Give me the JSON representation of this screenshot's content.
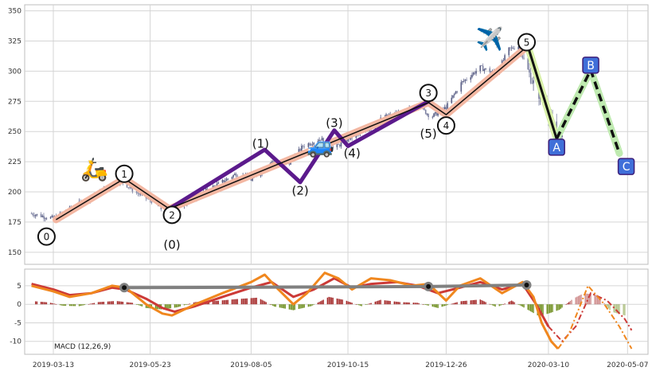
{
  "chart_data": [
    {
      "type": "candlestick",
      "title": "",
      "xlabel": "",
      "ylabel": "",
      "ylim": [
        140,
        355
      ],
      "yticks": [
        150,
        175,
        200,
        225,
        250,
        275,
        300,
        325,
        350
      ],
      "grid": true,
      "price_path": [
        [
          "2019-02-25",
          182
        ],
        [
          "2019-03-13",
          178
        ],
        [
          "2019-03-25",
          186
        ],
        [
          "2019-04-10",
          196
        ],
        [
          "2019-04-25",
          205
        ],
        [
          "2019-05-01",
          210
        ],
        [
          "2019-05-12",
          200
        ],
        [
          "2019-05-25",
          192
        ],
        [
          "2019-06-03",
          183
        ],
        [
          "2019-06-12",
          188
        ],
        [
          "2019-06-25",
          196
        ],
        [
          "2019-07-10",
          205
        ],
        [
          "2019-07-25",
          215
        ],
        [
          "2019-08-05",
          210
        ],
        [
          "2019-08-20",
          225
        ],
        [
          "2019-09-01",
          222
        ],
        [
          "2019-09-12",
          238
        ],
        [
          "2019-09-25",
          244
        ],
        [
          "2019-10-05",
          236
        ],
        [
          "2019-10-15",
          244
        ],
        [
          "2019-10-28",
          250
        ],
        [
          "2019-11-10",
          262
        ],
        [
          "2019-11-25",
          266
        ],
        [
          "2019-12-05",
          272
        ],
        [
          "2019-12-15",
          262
        ],
        [
          "2019-12-26",
          270
        ],
        [
          "2020-01-06",
          290
        ],
        [
          "2020-01-20",
          303
        ],
        [
          "2020-02-01",
          298
        ],
        [
          "2020-02-10",
          318
        ],
        [
          "2020-02-17",
          321
        ],
        [
          "2020-02-24",
          300
        ],
        [
          "2020-03-01",
          285
        ],
        [
          "2020-03-08",
          272
        ],
        [
          "2020-03-16",
          245
        ],
        [
          "2020-03-20",
          242
        ]
      ],
      "impulse_main": [
        [
          "2019-03-15",
          177
        ],
        [
          "2019-05-04",
          211
        ],
        [
          "2019-06-06",
          186
        ],
        [
          "2019-12-13",
          274
        ],
        [
          "2019-12-26",
          264
        ],
        [
          "2020-02-23",
          320
        ]
      ],
      "subwaves": [
        [
          "2019-06-06",
          186
        ],
        [
          "2019-08-15",
          235
        ],
        [
          "2019-09-10",
          208
        ],
        [
          "2019-10-05",
          251
        ],
        [
          "2019-10-15",
          238
        ],
        [
          "2019-12-13",
          275
        ]
      ],
      "correction": [
        [
          "2020-02-23",
          324
        ],
        [
          "2020-03-16",
          244
        ],
        [
          "2020-04-10",
          301
        ],
        [
          "2020-05-01",
          232
        ]
      ],
      "labels": [
        {
          "text": "0",
          "x": "2019-03-08",
          "y": 163,
          "circled": true,
          "wave": "main"
        },
        {
          "text": "1",
          "x": "2019-05-04",
          "y": 215,
          "circled": true,
          "wave": "main"
        },
        {
          "text": "2",
          "x": "2019-06-08",
          "y": 181,
          "circled": true,
          "wave": "main"
        },
        {
          "text": "(0)",
          "x": "2019-06-08",
          "y": 156,
          "circled": false,
          "wave": "sub"
        },
        {
          "text": "(1)",
          "x": "2019-08-12",
          "y": 240,
          "circled": false,
          "wave": "sub"
        },
        {
          "text": "(2)",
          "x": "2019-09-10",
          "y": 201,
          "circled": false,
          "wave": "sub"
        },
        {
          "text": "(3)",
          "x": "2019-10-05",
          "y": 257,
          "circled": false,
          "wave": "sub"
        },
        {
          "text": "(4)",
          "x": "2019-10-18",
          "y": 232,
          "circled": false,
          "wave": "sub"
        },
        {
          "text": "3",
          "x": "2019-12-13",
          "y": 282,
          "circled": true,
          "wave": "main"
        },
        {
          "text": "(5)",
          "x": "2019-12-13",
          "y": 248,
          "circled": false,
          "wave": "sub"
        },
        {
          "text": "4",
          "x": "2019-12-26",
          "y": 255,
          "circled": true,
          "wave": "main"
        },
        {
          "text": "5",
          "x": "2020-02-23",
          "y": 324,
          "circled": true,
          "wave": "main"
        },
        {
          "text": "A",
          "x": "2020-03-16",
          "y": 237,
          "circled": false,
          "wave": "corr"
        },
        {
          "text": "B",
          "x": "2020-04-10",
          "y": 305,
          "circled": false,
          "wave": "corr"
        },
        {
          "text": "C",
          "x": "2020-05-06",
          "y": 221,
          "circled": false,
          "wave": "corr"
        }
      ],
      "emojis": [
        {
          "name": "scooter-icon",
          "glyph": "🛵",
          "x": "2019-04-12",
          "y": 219
        },
        {
          "name": "car-icon",
          "glyph": "🚙",
          "x": "2019-09-25",
          "y": 239
        },
        {
          "name": "airplane-icon",
          "glyph": "✈️",
          "x": "2020-01-27",
          "y": 327
        }
      ]
    },
    {
      "type": "bar+line",
      "title": "MACD (12,26,9)",
      "ylim": [
        -13.5,
        9.5
      ],
      "yticks": [
        5,
        0,
        -5,
        -10
      ],
      "grid": true,
      "macd_line": [
        [
          "2019-02-25",
          5
        ],
        [
          "2019-03-13",
          3.5
        ],
        [
          "2019-03-25",
          2
        ],
        [
          "2019-04-10",
          3
        ],
        [
          "2019-04-25",
          5
        ],
        [
          "2019-05-05",
          4.5
        ],
        [
          "2019-05-20",
          0
        ],
        [
          "2019-06-01",
          -2.5
        ],
        [
          "2019-06-08",
          -3
        ],
        [
          "2019-06-25",
          0
        ],
        [
          "2019-07-15",
          3
        ],
        [
          "2019-08-05",
          6
        ],
        [
          "2019-08-15",
          8
        ],
        [
          "2019-08-25",
          4
        ],
        [
          "2019-09-05",
          0
        ],
        [
          "2019-09-15",
          3
        ],
        [
          "2019-09-28",
          8.5
        ],
        [
          "2019-10-08",
          7
        ],
        [
          "2019-10-18",
          4
        ],
        [
          "2019-11-01",
          7
        ],
        [
          "2019-11-15",
          6.5
        ],
        [
          "2019-12-01",
          5
        ],
        [
          "2019-12-13",
          5.5
        ],
        [
          "2019-12-26",
          1
        ],
        [
          "2020-01-05",
          5
        ],
        [
          "2020-01-20",
          7
        ],
        [
          "2020-02-05",
          3
        ],
        [
          "2020-02-20",
          6
        ],
        [
          "2020-02-28",
          2
        ],
        [
          "2020-03-05",
          -5
        ],
        [
          "2020-03-12",
          -10
        ],
        [
          "2020-03-17",
          -12
        ],
        [
          "2020-03-25",
          -8
        ],
        [
          "2020-04-08",
          5
        ],
        [
          "2020-04-20",
          0
        ],
        [
          "2020-05-01",
          -6
        ],
        [
          "2020-05-10",
          -12
        ]
      ],
      "signal_line": [
        [
          "2019-02-25",
          5.5
        ],
        [
          "2019-03-13",
          4
        ],
        [
          "2019-03-25",
          2.5
        ],
        [
          "2019-04-10",
          3
        ],
        [
          "2019-04-25",
          4.5
        ],
        [
          "2019-05-05",
          4
        ],
        [
          "2019-05-20",
          1.5
        ],
        [
          "2019-06-01",
          -1
        ],
        [
          "2019-06-10",
          -2
        ],
        [
          "2019-06-25",
          -0.5
        ],
        [
          "2019-07-15",
          2
        ],
        [
          "2019-08-05",
          4.5
        ],
        [
          "2019-08-20",
          6
        ],
        [
          "2019-09-05",
          2
        ],
        [
          "2019-09-20",
          4
        ],
        [
          "2019-10-05",
          7
        ],
        [
          "2019-10-18",
          4.5
        ],
        [
          "2019-11-01",
          5.5
        ],
        [
          "2019-11-20",
          6
        ],
        [
          "2019-12-05",
          5
        ],
        [
          "2019-12-20",
          3
        ],
        [
          "2020-01-05",
          4.5
        ],
        [
          "2020-01-20",
          6
        ],
        [
          "2020-02-05",
          4
        ],
        [
          "2020-02-20",
          5.5
        ],
        [
          "2020-03-01",
          0
        ],
        [
          "2020-03-10",
          -6
        ],
        [
          "2020-03-20",
          -10
        ],
        [
          "2020-03-30",
          -6
        ],
        [
          "2020-04-10",
          3
        ],
        [
          "2020-04-22",
          1
        ],
        [
          "2020-05-05",
          -4
        ],
        [
          "2020-05-10",
          -7
        ]
      ],
      "histogram": [
        [
          "2019-02-28",
          0.8
        ],
        [
          "2019-03-10",
          0.5
        ],
        [
          "2019-03-20",
          -0.4
        ],
        [
          "2019-04-01",
          -0.5
        ],
        [
          "2019-04-15",
          0.6
        ],
        [
          "2019-04-28",
          0.9
        ],
        [
          "2019-05-10",
          0.4
        ],
        [
          "2019-05-20",
          -1.0
        ],
        [
          "2019-06-01",
          -1.4
        ],
        [
          "2019-06-12",
          -0.8
        ],
        [
          "2019-06-25",
          0.6
        ],
        [
          "2019-07-10",
          0.9
        ],
        [
          "2019-07-25",
          1.4
        ],
        [
          "2019-08-10",
          1.8
        ],
        [
          "2019-08-22",
          -0.6
        ],
        [
          "2019-09-05",
          -1.6
        ],
        [
          "2019-09-18",
          -0.5
        ],
        [
          "2019-10-01",
          2.0
        ],
        [
          "2019-10-12",
          1.2
        ],
        [
          "2019-10-25",
          -0.5
        ],
        [
          "2019-11-08",
          1.2
        ],
        [
          "2019-11-22",
          0.6
        ],
        [
          "2019-12-05",
          0.4
        ],
        [
          "2019-12-20",
          -1.0
        ],
        [
          "2020-01-05",
          0.8
        ],
        [
          "2020-01-20",
          1.3
        ],
        [
          "2020-02-01",
          -0.8
        ],
        [
          "2020-02-12",
          1.0
        ],
        [
          "2020-02-24",
          -1.5
        ],
        [
          "2020-03-03",
          -3.2
        ],
        [
          "2020-03-10",
          -2.5
        ],
        [
          "2020-03-18",
          -1.5
        ],
        [
          "2020-03-28",
          1.5
        ],
        [
          "2020-04-05",
          3.0
        ],
        [
          "2020-04-15",
          2.5
        ],
        [
          "2020-04-25",
          -2.0
        ],
        [
          "2020-05-05",
          -3.0
        ]
      ],
      "divergence_line": [
        [
          "2019-05-04",
          4.5
        ],
        [
          "2019-12-13",
          4.8
        ],
        [
          "2020-02-23",
          5.2
        ]
      ]
    }
  ],
  "x_axis": {
    "range": [
      "2019-02-20",
      "2020-05-22"
    ],
    "ticks": [
      "2019-03-13",
      "2019-05-23",
      "2019-08-05",
      "2019-10-15",
      "2019-12-26",
      "2020-03-10",
      "2020-05-07"
    ]
  },
  "colors": {
    "candle_up": "#5a5f86",
    "candle_down": "#7e83a3",
    "impulse_main_line": "#111111",
    "impulse_main_halo": "#f3b7a2",
    "subwave_line": "#5b1a8c",
    "correction_impulse_halo": "#d8f0a8",
    "correction_halo": "#bfeab0",
    "correction_line": "#111111",
    "corr_label_fill": "#3f6fd9",
    "corr_label_border": "#3d1f7a",
    "macd_line": "#f0871e",
    "signal_line": "#cc3a37",
    "hist_pos": "#a52b2b",
    "hist_neg": "#6f8f1f",
    "divergence": "#808080",
    "grid": "#d5d5d5",
    "frame": "#bdbdbd"
  }
}
